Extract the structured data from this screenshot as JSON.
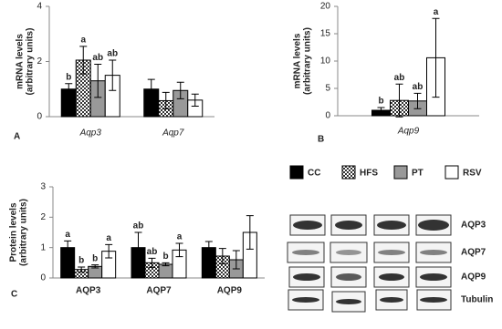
{
  "chart_data": [
    {
      "type": "bar",
      "panel_label": "A",
      "ylabel": [
        "mRNA levels",
        "(arbitrary units)"
      ],
      "categories": [
        "Aqp3",
        "Aqp7"
      ],
      "ylim": [
        0,
        4
      ],
      "yticks": [
        0,
        2,
        4
      ],
      "series": [
        {
          "name": "CC",
          "color": "#000000",
          "values": [
            1.0,
            1.0
          ],
          "errors": [
            0.2,
            0.35
          ],
          "sig_labels": [
            "b",
            null
          ]
        },
        {
          "name": "HFS",
          "color": "checker",
          "values": [
            2.05,
            0.58
          ],
          "errors": [
            0.5,
            0.3
          ],
          "sig_labels": [
            "a",
            null
          ]
        },
        {
          "name": "PT",
          "color": "#999999",
          "values": [
            1.3,
            0.95
          ],
          "errors": [
            0.6,
            0.3
          ],
          "sig_labels": [
            "ab",
            null
          ]
        },
        {
          "name": "RSV",
          "color": "#ffffff",
          "values": [
            1.5,
            0.6
          ],
          "errors": [
            0.55,
            0.22
          ],
          "sig_labels": [
            "ab",
            null
          ]
        }
      ]
    },
    {
      "type": "bar",
      "panel_label": "B",
      "ylabel": [
        "mRNA levels",
        "(arbitrary units)"
      ],
      "categories": [
        "Aqp9"
      ],
      "ylim": [
        0,
        20
      ],
      "yticks": [
        0,
        5,
        10,
        15,
        20
      ],
      "series": [
        {
          "color": "#000000",
          "values": [
            1.0
          ],
          "errors": [
            0.5
          ],
          "sig_labels": [
            "b"
          ]
        },
        {
          "color": "checker",
          "values": [
            2.8
          ],
          "errors": [
            3.0
          ],
          "sig_labels": [
            "ab"
          ]
        },
        {
          "color": "#999999",
          "values": [
            2.7
          ],
          "errors": [
            1.4
          ],
          "sig_labels": [
            "ab"
          ]
        },
        {
          "color": "#ffffff",
          "values": [
            10.6
          ],
          "errors": [
            7.2
          ],
          "sig_labels": [
            "a"
          ]
        }
      ]
    },
    {
      "type": "bar",
      "panel_label": "C",
      "ylabel": [
        "Protein levels",
        "(arbitrary units)"
      ],
      "categories": [
        "AQP3",
        "AQP7",
        "AQP9"
      ],
      "ylim": [
        0,
        3
      ],
      "yticks": [
        0,
        1,
        2,
        3
      ],
      "series": [
        {
          "color": "#000000",
          "values": [
            1.0,
            1.0,
            1.0
          ],
          "errors": [
            0.22,
            0.5,
            0.2
          ],
          "sig_labels": [
            "a",
            "ab",
            null
          ]
        },
        {
          "color": "checker",
          "values": [
            0.28,
            0.5,
            0.72
          ],
          "errors": [
            0.08,
            0.15,
            0.25
          ],
          "sig_labels": [
            "b",
            "ab",
            null
          ]
        },
        {
          "color": "#999999",
          "values": [
            0.38,
            0.45,
            0.6
          ],
          "errors": [
            0.05,
            0.05,
            0.3
          ],
          "sig_labels": [
            "b",
            "b",
            null
          ]
        },
        {
          "color": "#ffffff",
          "values": [
            0.88,
            0.92,
            1.5
          ],
          "errors": [
            0.22,
            0.22,
            0.55
          ],
          "sig_labels": [
            "a",
            "a",
            null
          ]
        }
      ]
    }
  ],
  "blot": {
    "labels": [
      "AQP3",
      "AQP7",
      "AQP9",
      "Tubulin"
    ]
  }
}
